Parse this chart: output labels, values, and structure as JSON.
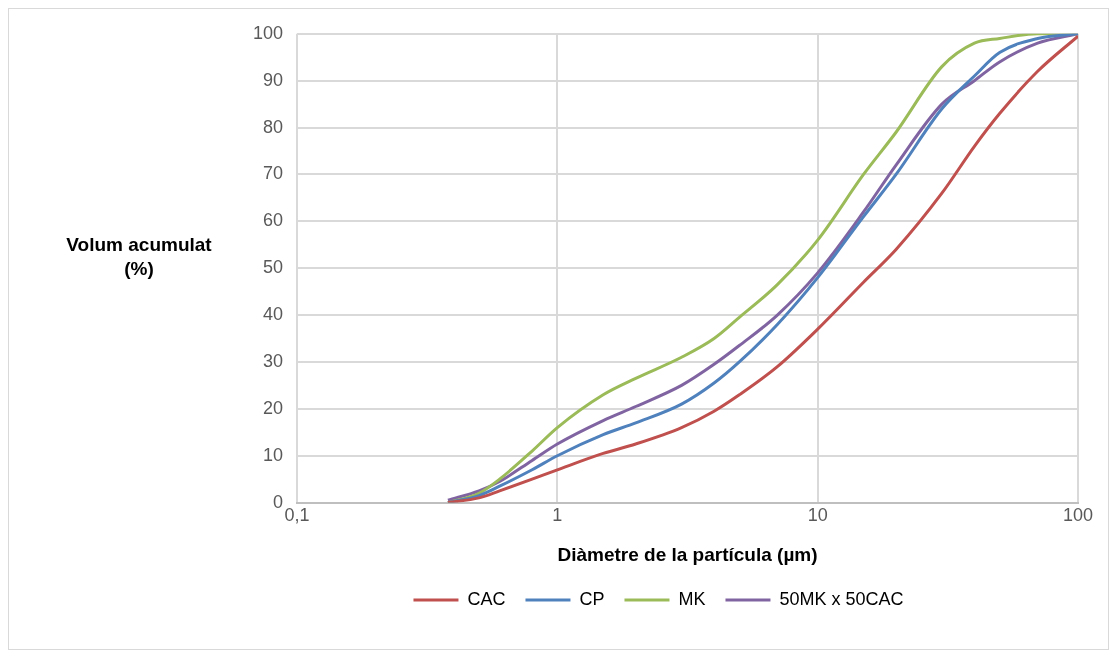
{
  "chart_data": {
    "type": "line",
    "xlabel": "Diàmetre de la partícula (µm)",
    "ylabel": "Volum acumulat (%)",
    "x": [
      0.38,
      0.5,
      0.6,
      0.8,
      1,
      1.5,
      2,
      3,
      4,
      5,
      7,
      10,
      15,
      20,
      30,
      40,
      50,
      70,
      100
    ],
    "series": [
      {
        "name": "CAC",
        "color": "#c0504d",
        "values": [
          0,
          1,
          2.5,
          5,
          7,
          10.5,
          12.5,
          16,
          19.5,
          23,
          29,
          37,
          47,
          54,
          66,
          76,
          83,
          92,
          99.5
        ]
      },
      {
        "name": "CP",
        "color": "#4f81bd",
        "values": [
          0,
          1.5,
          3.5,
          7,
          10,
          14.5,
          17,
          21,
          25.5,
          30,
          38,
          48,
          61,
          70,
          84,
          91,
          96,
          99,
          100
        ]
      },
      {
        "name": "MK",
        "color": "#9bbb59",
        "values": [
          0,
          2,
          5,
          11,
          16,
          23,
          26.5,
          31,
          35,
          39.5,
          46.5,
          56,
          70,
          79,
          93,
          98,
          99,
          100,
          100
        ]
      },
      {
        "name": "50MK x 50CAC",
        "color": "#8064a2",
        "values": [
          0.5,
          2.5,
          4.5,
          9,
          12.5,
          17.5,
          20.5,
          25,
          29.5,
          33.5,
          40,
          49,
          62,
          72,
          85,
          90,
          94,
          98,
          100
        ]
      }
    ],
    "log": "x",
    "xlim": [
      0.1,
      100
    ],
    "xticks": [
      {
        "value": 0.1,
        "label": "0,1"
      },
      1,
      10,
      100
    ],
    "ylim": [
      0,
      100
    ],
    "yticks": [
      0,
      10,
      20,
      30,
      40,
      50,
      60,
      70,
      80,
      90,
      100
    ],
    "grid": true,
    "legend": "bottom",
    "marker": "none",
    "line_style": "solid"
  }
}
